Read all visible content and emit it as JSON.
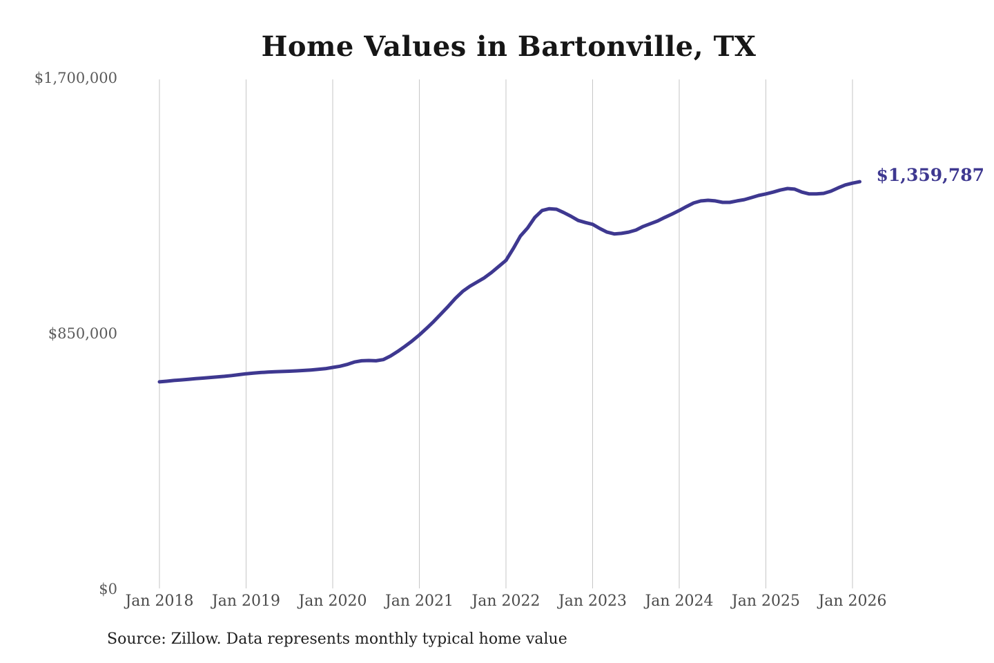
{
  "title": "Home Values in Bartonville, TX",
  "end_label": "$1,359,787",
  "source_note": "Source: Zillow. Data represents monthly typical home value",
  "colors": {
    "line": "#3e3890",
    "end_label": "#3e3890",
    "grid": "#c6c6c6",
    "title": "#161616",
    "y_axis_text": "#5a5a5a",
    "x_axis_text": "#4b4b4b",
    "source_text": "#1f1f1f",
    "background": "#ffffff"
  },
  "chart_data": {
    "type": "line",
    "title": "Home Values in Bartonville, TX",
    "xlabel": "",
    "ylabel": "",
    "ylim": [
      0,
      1700000
    ],
    "grid": "vertical-only",
    "legend": "none",
    "frequency": "monthly",
    "x_start": "Jan 2018",
    "x_end": "Feb 2026",
    "x_tick_labels": [
      "Jan 2018",
      "Jan 2019",
      "Jan 2020",
      "Jan 2021",
      "Jan 2022",
      "Jan 2023",
      "Jan 2024",
      "Jan 2025",
      "Jan 2026"
    ],
    "y_ticks": [
      {
        "label": "$0",
        "value": 0
      },
      {
        "label": "$850,000",
        "value": 850000
      },
      {
        "label": "$1,700,000",
        "value": 1700000
      }
    ],
    "end_value_label": "$1,359,787",
    "series": [
      {
        "name": "Monthly typical home value",
        "values": [
          694000,
          696000,
          698500,
          700500,
          702500,
          704500,
          706500,
          708500,
          710500,
          712500,
          715000,
          718000,
          721000,
          723000,
          725000,
          726500,
          727500,
          728500,
          729500,
          730500,
          732000,
          733500,
          735500,
          738000,
          742000,
          746000,
          752000,
          760000,
          764000,
          765000,
          764000,
          768000,
          780000,
          795000,
          812000,
          830000,
          850000,
          872000,
          895000,
          920000,
          945000,
          972000,
          995000,
          1012000,
          1026000,
          1040000,
          1058000,
          1078000,
          1098000,
          1137000,
          1179000,
          1206000,
          1241000,
          1264000,
          1270000,
          1268000,
          1257000,
          1245000,
          1231000,
          1224000,
          1218000,
          1204000,
          1192000,
          1186000,
          1188000,
          1192000,
          1199000,
          1211000,
          1220000,
          1229000,
          1241000,
          1252000,
          1264000,
          1277000,
          1289000,
          1296000,
          1298000,
          1296000,
          1291000,
          1291000,
          1296000,
          1300000,
          1307000,
          1314000,
          1319000,
          1325000,
          1332000,
          1337000,
          1335000,
          1325000,
          1319000,
          1319000,
          1321000,
          1328000,
          1339000,
          1349000,
          1355000,
          1359787
        ]
      }
    ]
  }
}
